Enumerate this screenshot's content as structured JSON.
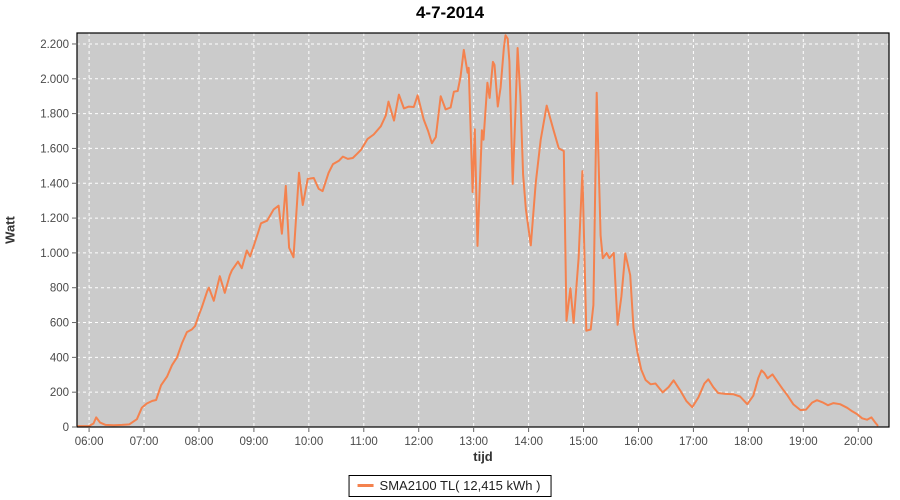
{
  "title": "4-7-2014",
  "axes": {
    "y_label": "Watt",
    "x_label": "tijd"
  },
  "legend": {
    "label": "SMA2100 TL( 12,415 kWh )"
  },
  "colors": {
    "series_line": "#F4824E",
    "plot_background": "#CBCBCB",
    "gridline": "#FFFFFF",
    "plot_border": "#000000",
    "tick_text": "#4a4a4a",
    "tick_mark": "#666666",
    "page_background": "#FFFFFF"
  },
  "chart_data": {
    "type": "line",
    "title": "4-7-2014",
    "xlabel": "tijd",
    "ylabel": "Watt",
    "x_range_hours": [
      5.78,
      20.56
    ],
    "ylim": [
      0,
      2263
    ],
    "grid": "white dashed on gray plot, legend centered bottom",
    "x_ticks": [
      {
        "t": 6,
        "label": "06:00"
      },
      {
        "t": 7,
        "label": "07:00"
      },
      {
        "t": 8,
        "label": "08:00"
      },
      {
        "t": 9,
        "label": "09:00"
      },
      {
        "t": 10,
        "label": "10:00"
      },
      {
        "t": 11,
        "label": "11:00"
      },
      {
        "t": 12,
        "label": "12:00"
      },
      {
        "t": 13,
        "label": "13:00"
      },
      {
        "t": 14,
        "label": "14:00"
      },
      {
        "t": 15,
        "label": "15:00"
      },
      {
        "t": 16,
        "label": "16:00"
      },
      {
        "t": 17,
        "label": "17:00"
      },
      {
        "t": 18,
        "label": "18:00"
      },
      {
        "t": 19,
        "label": "19:00"
      },
      {
        "t": 20,
        "label": "20:00"
      }
    ],
    "y_ticks": [
      {
        "v": 0,
        "label": "0"
      },
      {
        "v": 200,
        "label": "200"
      },
      {
        "v": 400,
        "label": "400"
      },
      {
        "v": 600,
        "label": "600"
      },
      {
        "v": 800,
        "label": "800"
      },
      {
        "v": 1000,
        "label": "1.000"
      },
      {
        "v": 1200,
        "label": "1.200"
      },
      {
        "v": 1400,
        "label": "1.400"
      },
      {
        "v": 1600,
        "label": "1.600"
      },
      {
        "v": 1800,
        "label": "1.800"
      },
      {
        "v": 2000,
        "label": "2.000"
      },
      {
        "v": 2200,
        "label": "2.200"
      }
    ],
    "series": [
      {
        "name": "SMA2100 TL( 12,415 kWh )",
        "color": "#F4824E",
        "points": [
          [
            5.8,
            5
          ],
          [
            6.0,
            6
          ],
          [
            6.08,
            20
          ],
          [
            6.13,
            55
          ],
          [
            6.2,
            25
          ],
          [
            6.3,
            12
          ],
          [
            6.45,
            10
          ],
          [
            6.6,
            12
          ],
          [
            6.73,
            15
          ],
          [
            6.87,
            45
          ],
          [
            6.96,
            110
          ],
          [
            7.05,
            135
          ],
          [
            7.15,
            150
          ],
          [
            7.22,
            155
          ],
          [
            7.31,
            240
          ],
          [
            7.42,
            290
          ],
          [
            7.51,
            355
          ],
          [
            7.6,
            400
          ],
          [
            7.69,
            480
          ],
          [
            7.78,
            545
          ],
          [
            7.87,
            560
          ],
          [
            7.93,
            580
          ],
          [
            8.0,
            645
          ],
          [
            8.05,
            685
          ],
          [
            8.15,
            780
          ],
          [
            8.18,
            800
          ],
          [
            8.27,
            725
          ],
          [
            8.38,
            866
          ],
          [
            8.47,
            770
          ],
          [
            8.56,
            870
          ],
          [
            8.6,
            900
          ],
          [
            8.71,
            950
          ],
          [
            8.78,
            912
          ],
          [
            8.87,
            1014
          ],
          [
            8.93,
            980
          ],
          [
            9.0,
            1043
          ],
          [
            9.08,
            1120
          ],
          [
            9.13,
            1170
          ],
          [
            9.24,
            1185
          ],
          [
            9.36,
            1250
          ],
          [
            9.45,
            1271
          ],
          [
            9.51,
            1110
          ],
          [
            9.58,
            1385
          ],
          [
            9.64,
            1030
          ],
          [
            9.72,
            975
          ],
          [
            9.82,
            1460
          ],
          [
            9.89,
            1275
          ],
          [
            9.98,
            1425
          ],
          [
            10.09,
            1430
          ],
          [
            10.18,
            1368
          ],
          [
            10.25,
            1355
          ],
          [
            10.36,
            1460
          ],
          [
            10.44,
            1510
          ],
          [
            10.55,
            1530
          ],
          [
            10.62,
            1553
          ],
          [
            10.71,
            1540
          ],
          [
            10.8,
            1545
          ],
          [
            10.88,
            1570
          ],
          [
            10.95,
            1592
          ],
          [
            11.07,
            1655
          ],
          [
            11.18,
            1680
          ],
          [
            11.31,
            1727
          ],
          [
            11.4,
            1790
          ],
          [
            11.45,
            1869
          ],
          [
            11.55,
            1760
          ],
          [
            11.64,
            1909
          ],
          [
            11.73,
            1830
          ],
          [
            11.82,
            1840
          ],
          [
            11.91,
            1838
          ],
          [
            11.98,
            1905
          ],
          [
            12.09,
            1766
          ],
          [
            12.17,
            1700
          ],
          [
            12.24,
            1630
          ],
          [
            12.31,
            1665
          ],
          [
            12.4,
            1900
          ],
          [
            12.49,
            1824
          ],
          [
            12.58,
            1835
          ],
          [
            12.64,
            1926
          ],
          [
            12.71,
            1930
          ],
          [
            12.76,
            2010
          ],
          [
            12.82,
            2166
          ],
          [
            12.89,
            2035
          ],
          [
            12.91,
            2063
          ],
          [
            12.98,
            1350
          ],
          [
            13.02,
            1710
          ],
          [
            13.07,
            1040
          ],
          [
            13.15,
            1704
          ],
          [
            13.18,
            1650
          ],
          [
            13.25,
            1977
          ],
          [
            13.29,
            1890
          ],
          [
            13.35,
            2097
          ],
          [
            13.38,
            2080
          ],
          [
            13.44,
            1841
          ],
          [
            13.49,
            1950
          ],
          [
            13.55,
            2180
          ],
          [
            13.58,
            2250
          ],
          [
            13.62,
            2230
          ],
          [
            13.65,
            2100
          ],
          [
            13.71,
            1396
          ],
          [
            13.76,
            1800
          ],
          [
            13.8,
            2177
          ],
          [
            13.85,
            1900
          ],
          [
            13.9,
            1450
          ],
          [
            13.95,
            1250
          ],
          [
            14.04,
            1043
          ],
          [
            14.13,
            1400
          ],
          [
            14.22,
            1650
          ],
          [
            14.33,
            1846
          ],
          [
            14.45,
            1710
          ],
          [
            14.55,
            1600
          ],
          [
            14.64,
            1585
          ],
          [
            14.69,
            610
          ],
          [
            14.76,
            798
          ],
          [
            14.82,
            598
          ],
          [
            14.91,
            969
          ],
          [
            14.98,
            1470
          ],
          [
            15.05,
            553
          ],
          [
            15.13,
            560
          ],
          [
            15.18,
            700
          ],
          [
            15.24,
            1920
          ],
          [
            15.31,
            1100
          ],
          [
            15.35,
            969
          ],
          [
            15.42,
            1000
          ],
          [
            15.47,
            970
          ],
          [
            15.55,
            1000
          ],
          [
            15.62,
            587
          ],
          [
            15.69,
            750
          ],
          [
            15.76,
            997
          ],
          [
            15.85,
            872
          ],
          [
            15.91,
            570
          ],
          [
            15.98,
            430
          ],
          [
            16.05,
            330
          ],
          [
            16.13,
            270
          ],
          [
            16.22,
            245
          ],
          [
            16.31,
            250
          ],
          [
            16.44,
            199
          ],
          [
            16.55,
            230
          ],
          [
            16.64,
            268
          ],
          [
            16.76,
            210
          ],
          [
            16.87,
            150
          ],
          [
            16.98,
            114
          ],
          [
            17.09,
            170
          ],
          [
            17.2,
            250
          ],
          [
            17.27,
            274
          ],
          [
            17.36,
            230
          ],
          [
            17.45,
            195
          ],
          [
            17.58,
            190
          ],
          [
            17.73,
            188
          ],
          [
            17.85,
            175
          ],
          [
            17.98,
            131
          ],
          [
            18.09,
            180
          ],
          [
            18.18,
            280
          ],
          [
            18.24,
            325
          ],
          [
            18.29,
            310
          ],
          [
            18.35,
            280
          ],
          [
            18.44,
            302
          ],
          [
            18.53,
            260
          ],
          [
            18.62,
            220
          ],
          [
            18.71,
            182
          ],
          [
            18.82,
            130
          ],
          [
            18.95,
            97
          ],
          [
            19.05,
            100
          ],
          [
            19.16,
            140
          ],
          [
            19.25,
            154
          ],
          [
            19.36,
            140
          ],
          [
            19.45,
            125
          ],
          [
            19.55,
            137
          ],
          [
            19.67,
            131
          ],
          [
            19.8,
            110
          ],
          [
            19.89,
            90
          ],
          [
            19.98,
            74
          ],
          [
            20.07,
            50
          ],
          [
            20.16,
            42
          ],
          [
            20.24,
            55
          ],
          [
            20.31,
            25
          ],
          [
            20.35,
            10
          ]
        ]
      }
    ]
  }
}
